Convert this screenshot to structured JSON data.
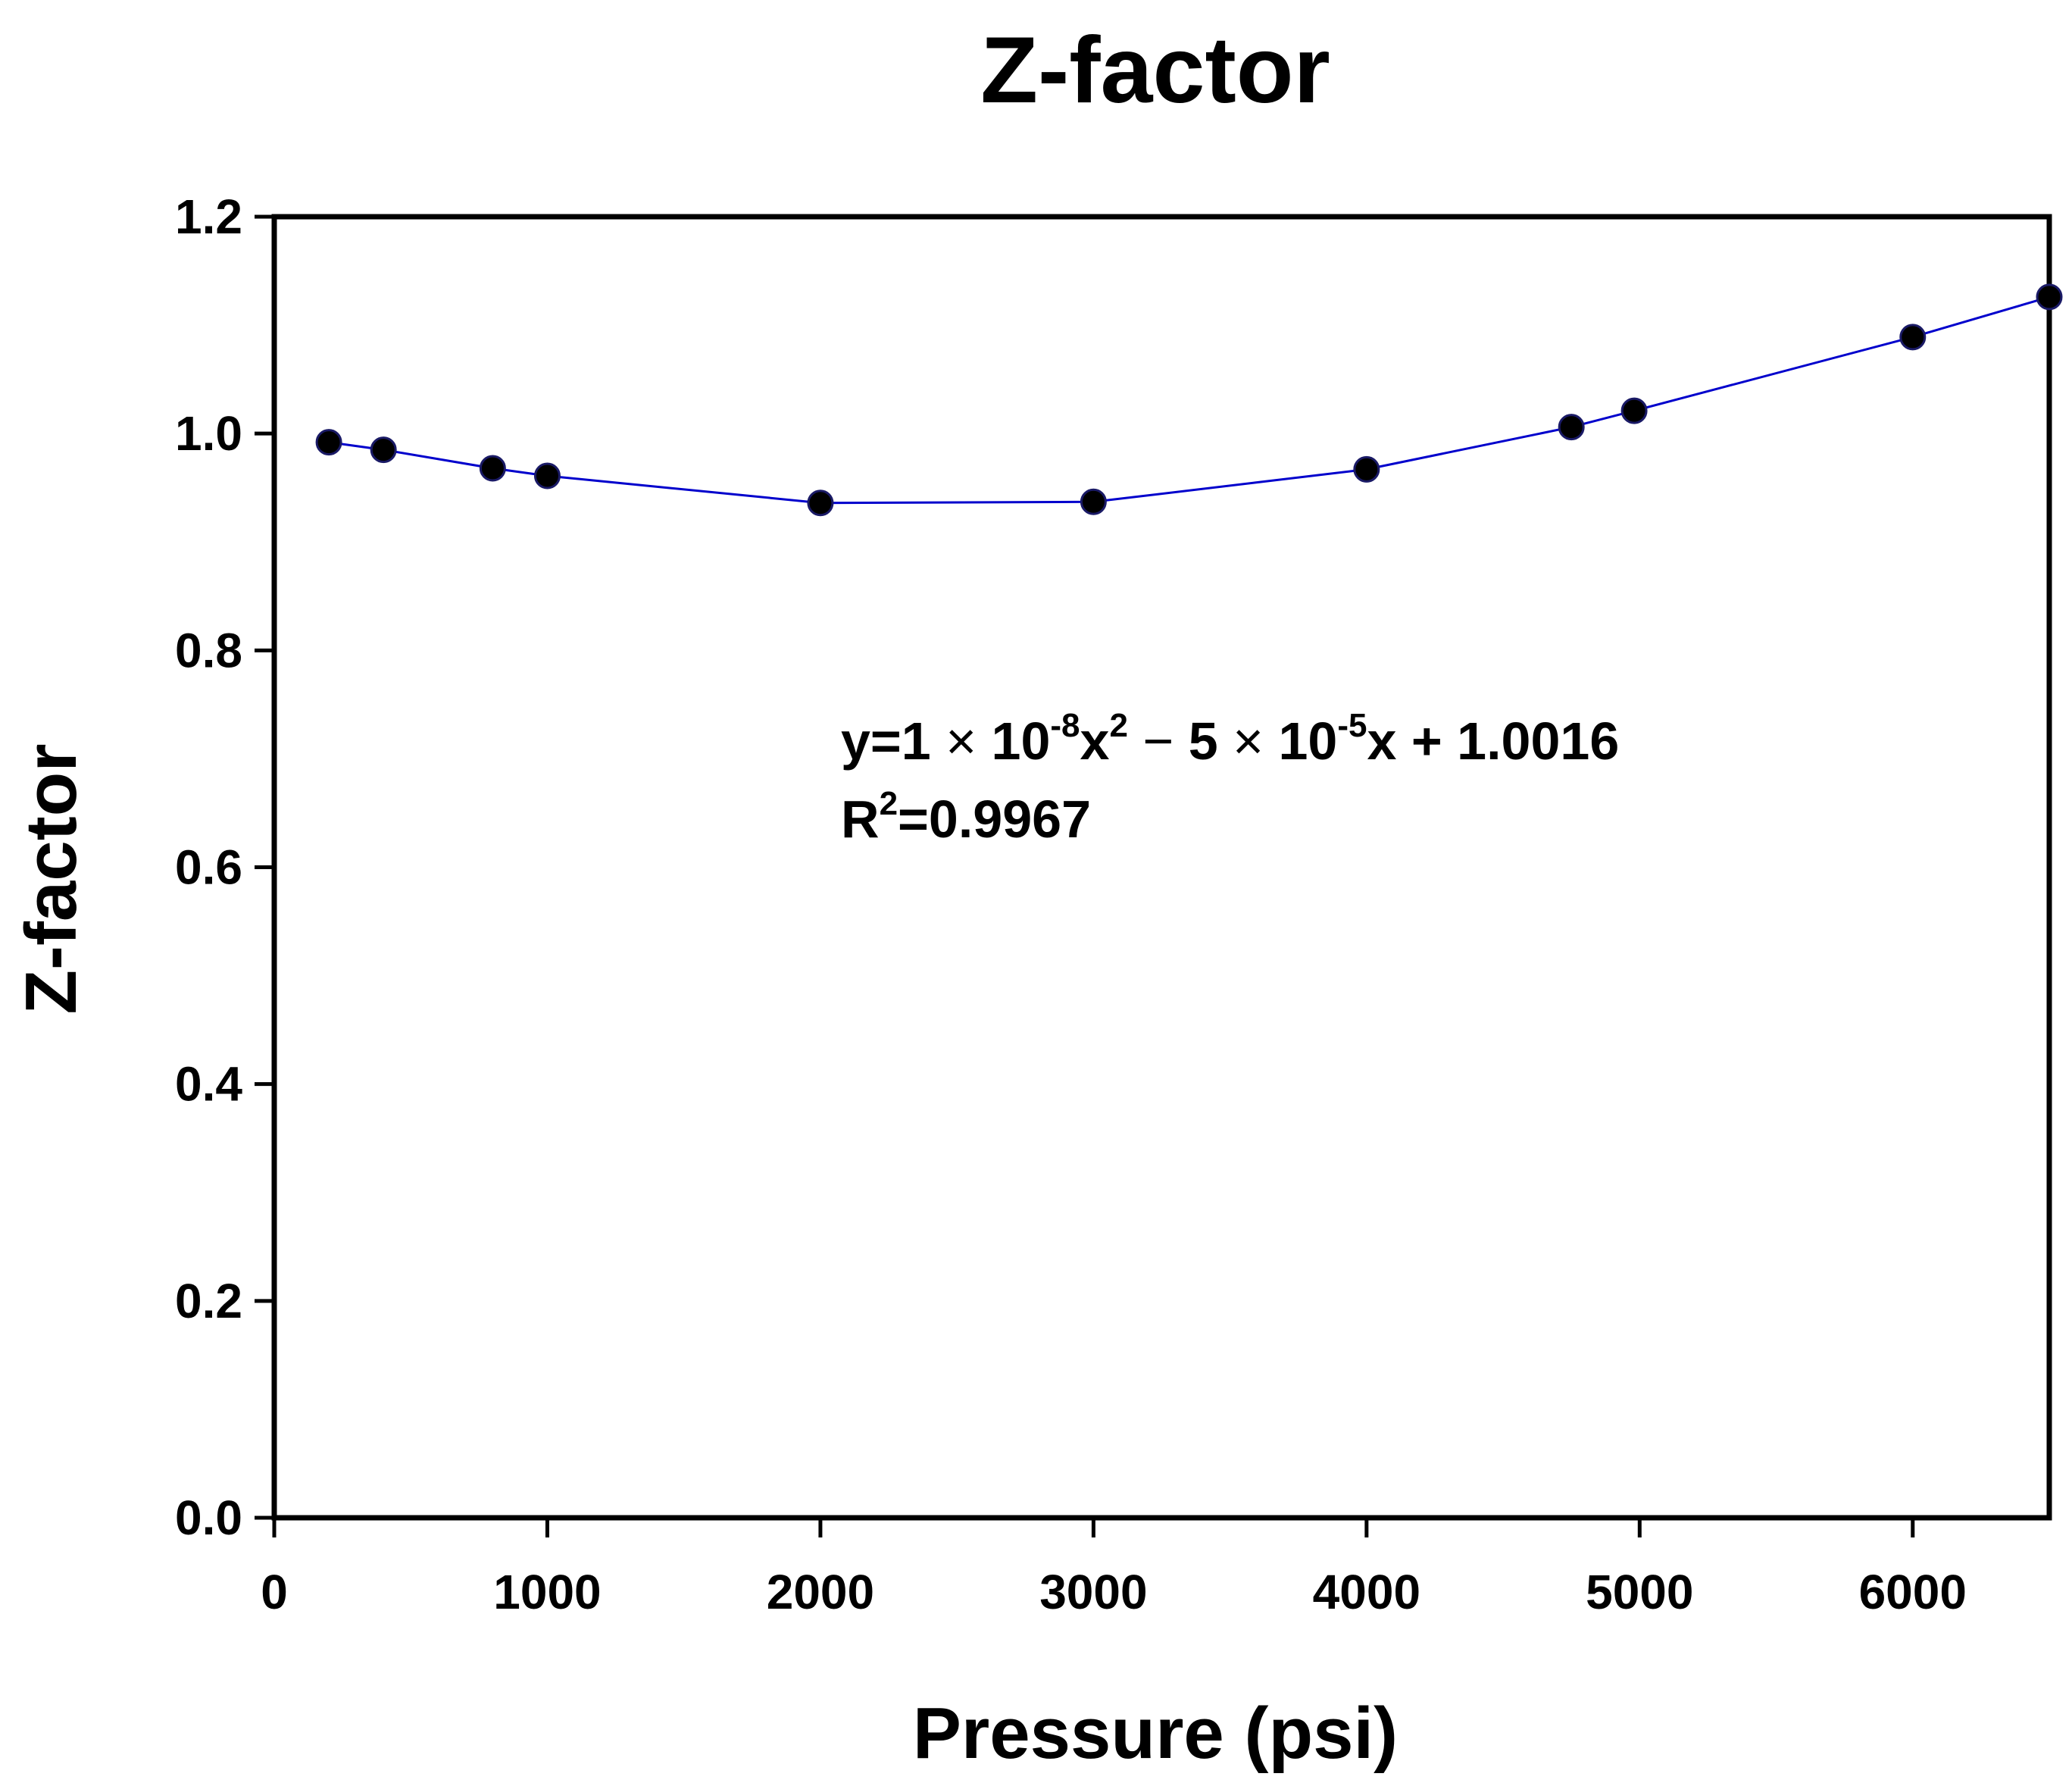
{
  "chart_data": {
    "type": "scatter",
    "title": "Z-factor",
    "xlabel": "Pressure (psi)",
    "ylabel": "Z-factor",
    "xlim": [
      0,
      6500
    ],
    "ylim": [
      0.0,
      1.2
    ],
    "xticks": [
      0,
      1000,
      2000,
      3000,
      4000,
      5000,
      6000
    ],
    "xtick_labels": [
      "0",
      "1000",
      "2000",
      "3000",
      "4000",
      "5000",
      "6000"
    ],
    "yticks": [
      0.0,
      0.2,
      0.4,
      0.6,
      0.8,
      1.0,
      1.2
    ],
    "ytick_labels": [
      "0.0",
      "0.2",
      "0.4",
      "0.6",
      "0.8",
      "1.0",
      "1.2"
    ],
    "grid": false,
    "series": [
      {
        "name": "Z-factor",
        "marker_color": "#000000",
        "line_color": "#0000cc",
        "x": [
          200,
          400,
          800,
          1000,
          2000,
          3000,
          4000,
          4750,
          4980,
          6000,
          6500
        ],
        "y": [
          0.992,
          0.985,
          0.968,
          0.961,
          0.936,
          0.937,
          0.967,
          1.006,
          1.021,
          1.089,
          1.126
        ]
      }
    ],
    "fit_equation": {
      "prefix": "y=1 ",
      "times1": "×",
      "base1": " 10",
      "exp1": "-8",
      "var1": "x",
      "pow1": "2",
      "minus": " − ",
      "coef2": "5 ",
      "times2": "×",
      "base2": " 10",
      "exp2": "-5",
      "var2": "x + 1.0016",
      "r2_prefix": "R",
      "r2_pow": "2",
      "r2_value": "=0.9967"
    }
  }
}
